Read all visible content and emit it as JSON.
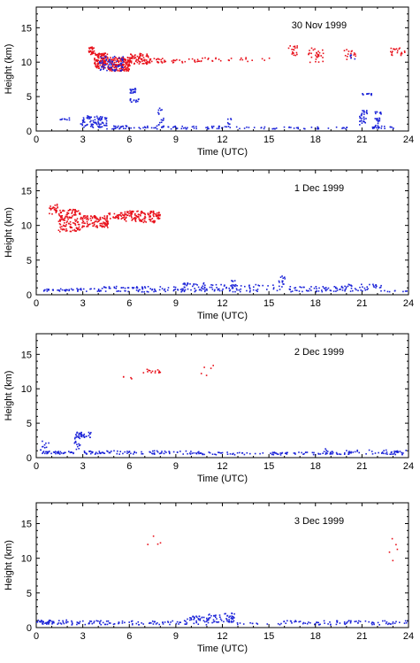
{
  "chart_data": [
    {
      "type": "scatter",
      "title": "30 Nov 1999",
      "xlabel": "Time (UTC)",
      "ylabel": "Height (km)",
      "xlim": [
        0,
        24
      ],
      "ylim": [
        0,
        18
      ],
      "xticks": [
        0,
        3,
        6,
        9,
        12,
        15,
        18,
        21,
        24
      ],
      "yticks": [
        0,
        5,
        10,
        15
      ],
      "series": [
        {
          "color": "#e8101a",
          "segments": [
            {
              "x0": 3.3,
              "x1": 3.7,
              "y0": 11.2,
              "y1": 12.3,
              "n": 30
            },
            {
              "x0": 3.7,
              "x1": 4.6,
              "y0": 9.2,
              "y1": 11.4,
              "n": 120
            },
            {
              "x0": 4.6,
              "x1": 6.0,
              "y0": 8.8,
              "y1": 10.8,
              "n": 160
            },
            {
              "x0": 6.0,
              "x1": 7.2,
              "y0": 9.8,
              "y1": 11.4,
              "n": 70
            },
            {
              "x0": 7.2,
              "x1": 8.4,
              "y0": 10.0,
              "y1": 10.7,
              "n": 25
            },
            {
              "x0": 8.4,
              "x1": 10.5,
              "y0": 10.0,
              "y1": 10.6,
              "n": 20
            },
            {
              "x0": 10.5,
              "x1": 15.0,
              "y0": 10.2,
              "y1": 10.8,
              "n": 25
            },
            {
              "x0": 16.2,
              "x1": 16.8,
              "y0": 11.0,
              "y1": 12.5,
              "n": 18
            },
            {
              "x0": 17.5,
              "x1": 18.5,
              "y0": 10.0,
              "y1": 12.2,
              "n": 30
            },
            {
              "x0": 19.8,
              "x1": 20.6,
              "y0": 10.5,
              "y1": 12.0,
              "n": 15
            },
            {
              "x0": 22.8,
              "x1": 23.8,
              "y0": 11.0,
              "y1": 12.2,
              "n": 20
            }
          ]
        },
        {
          "color": "#1a22d8",
          "segments": [
            {
              "x0": 4.0,
              "x1": 5.6,
              "y0": 8.8,
              "y1": 11.0,
              "n": 70
            },
            {
              "x0": 6.0,
              "x1": 6.4,
              "y0": 5.6,
              "y1": 6.3,
              "n": 18
            },
            {
              "x0": 6.0,
              "x1": 6.6,
              "y0": 4.3,
              "y1": 4.8,
              "n": 14
            },
            {
              "x0": 1.5,
              "x1": 2.2,
              "y0": 1.7,
              "y1": 2.0,
              "n": 8
            },
            {
              "x0": 2.8,
              "x1": 4.5,
              "y0": 0.6,
              "y1": 2.3,
              "n": 90
            },
            {
              "x0": 4.5,
              "x1": 7.8,
              "y0": 0.4,
              "y1": 0.9,
              "n": 40
            },
            {
              "x0": 7.8,
              "x1": 8.2,
              "y0": 0.6,
              "y1": 3.5,
              "n": 20
            },
            {
              "x0": 8.2,
              "x1": 12.5,
              "y0": 0.4,
              "y1": 0.8,
              "n": 40
            },
            {
              "x0": 12.3,
              "x1": 12.6,
              "y0": 0.6,
              "y1": 2.0,
              "n": 8
            },
            {
              "x0": 12.5,
              "x1": 20.2,
              "y0": 0.4,
              "y1": 0.7,
              "n": 40
            },
            {
              "x0": 20.8,
              "x1": 21.3,
              "y0": 0.8,
              "y1": 3.2,
              "n": 30
            },
            {
              "x0": 20.9,
              "x1": 21.7,
              "y0": 5.3,
              "y1": 5.6,
              "n": 12
            },
            {
              "x0": 21.8,
              "x1": 22.2,
              "y0": 0.6,
              "y1": 3.2,
              "n": 25
            },
            {
              "x0": 21.6,
              "x1": 23.0,
              "y0": 0.4,
              "y1": 0.8,
              "n": 20
            },
            {
              "x0": 20.2,
              "x1": 20.5,
              "y0": 10.5,
              "y1": 11.2,
              "n": 6
            }
          ]
        }
      ]
    },
    {
      "type": "scatter",
      "title": "1 Dec 1999",
      "xlabel": "Time (UTC)",
      "ylabel": "Height (km)",
      "xlim": [
        0,
        24
      ],
      "ylim": [
        0,
        18
      ],
      "xticks": [
        0,
        3,
        6,
        9,
        12,
        15,
        18,
        21,
        24
      ],
      "yticks": [
        0,
        5,
        10,
        15
      ],
      "series": [
        {
          "color": "#e8101a",
          "segments": [
            {
              "x0": 0.8,
              "x1": 1.4,
              "y0": 11.6,
              "y1": 13.2,
              "n": 25
            },
            {
              "x0": 1.4,
              "x1": 2.8,
              "y0": 9.2,
              "y1": 12.4,
              "n": 130
            },
            {
              "x0": 2.8,
              "x1": 4.6,
              "y0": 9.8,
              "y1": 11.5,
              "n": 110
            },
            {
              "x0": 4.6,
              "x1": 5.6,
              "y0": 11.0,
              "y1": 12.0,
              "n": 30
            },
            {
              "x0": 5.6,
              "x1": 7.6,
              "y0": 10.5,
              "y1": 12.2,
              "n": 120
            },
            {
              "x0": 7.6,
              "x1": 8.0,
              "y0": 11.0,
              "y1": 12.0,
              "n": 20
            }
          ]
        },
        {
          "color": "#1a22d8",
          "segments": [
            {
              "x0": 0.4,
              "x1": 4.2,
              "y0": 0.6,
              "y1": 1.0,
              "n": 45
            },
            {
              "x0": 4.2,
              "x1": 9.2,
              "y0": 0.5,
              "y1": 1.3,
              "n": 70
            },
            {
              "x0": 9.2,
              "x1": 11.0,
              "y0": 0.5,
              "y1": 1.8,
              "n": 50
            },
            {
              "x0": 11.0,
              "x1": 15.5,
              "y0": 0.5,
              "y1": 1.6,
              "n": 60
            },
            {
              "x0": 12.5,
              "x1": 12.9,
              "y0": 1.0,
              "y1": 2.2,
              "n": 10
            },
            {
              "x0": 15.6,
              "x1": 16.0,
              "y0": 0.6,
              "y1": 2.8,
              "n": 15
            },
            {
              "x0": 16.0,
              "x1": 19.5,
              "y0": 0.5,
              "y1": 1.3,
              "n": 50
            },
            {
              "x0": 19.5,
              "x1": 22.2,
              "y0": 0.6,
              "y1": 1.6,
              "n": 45
            },
            {
              "x0": 22.2,
              "x1": 23.9,
              "y0": 0.5,
              "y1": 0.7,
              "n": 8
            }
          ]
        }
      ]
    },
    {
      "type": "scatter",
      "title": "2 Dec 1999",
      "xlabel": "Time (UTC)",
      "ylabel": "Height (km)",
      "xlim": [
        0,
        24
      ],
      "ylim": [
        0,
        18
      ],
      "xticks": [
        0,
        3,
        6,
        9,
        12,
        15,
        18,
        21,
        24
      ],
      "yticks": [
        0,
        5,
        10,
        15
      ],
      "series": [
        {
          "color": "#e8101a",
          "segments": [
            {
              "x0": 6.8,
              "x1": 8.0,
              "y0": 12.4,
              "y1": 13.0,
              "n": 14
            },
            {
              "x0": 5.5,
              "x1": 6.2,
              "y0": 11.4,
              "y1": 11.9,
              "n": 4
            },
            {
              "x0": 10.0,
              "x1": 11.5,
              "y0": 12.0,
              "y1": 13.5,
              "n": 5
            }
          ]
        },
        {
          "color": "#1a22d8",
          "segments": [
            {
              "x0": 0.2,
              "x1": 0.8,
              "y0": 0.6,
              "y1": 2.6,
              "n": 15
            },
            {
              "x0": 0.3,
              "x1": 2.4,
              "y0": 0.6,
              "y1": 1.0,
              "n": 30
            },
            {
              "x0": 2.4,
              "x1": 2.8,
              "y0": 1.0,
              "y1": 3.2,
              "n": 15
            },
            {
              "x0": 2.5,
              "x1": 3.5,
              "y0": 3.0,
              "y1": 3.8,
              "n": 35
            },
            {
              "x0": 3.0,
              "x1": 10.5,
              "y0": 0.6,
              "y1": 1.1,
              "n": 90
            },
            {
              "x0": 10.5,
              "x1": 18.5,
              "y0": 0.5,
              "y1": 0.9,
              "n": 70
            },
            {
              "x0": 18.5,
              "x1": 19.0,
              "y0": 0.6,
              "y1": 1.4,
              "n": 12
            },
            {
              "x0": 19.0,
              "x1": 23.8,
              "y0": 0.5,
              "y1": 1.2,
              "n": 60
            }
          ]
        }
      ]
    },
    {
      "type": "scatter",
      "title": "3 Dec 1999",
      "xlabel": "Time (UTC)",
      "ylabel": "Height (km)",
      "xlim": [
        0,
        24
      ],
      "ylim": [
        0,
        18
      ],
      "xticks": [
        0,
        3,
        6,
        9,
        12,
        15,
        18,
        21,
        24
      ],
      "yticks": [
        0,
        5,
        10,
        15
      ],
      "series": [
        {
          "color": "#e8101a",
          "segments": [
            {
              "x0": 6.5,
              "x1": 8.0,
              "y0": 12.0,
              "y1": 14.0,
              "n": 4
            },
            {
              "x0": 22.5,
              "x1": 23.5,
              "y0": 9.5,
              "y1": 13.0,
              "n": 5
            }
          ]
        },
        {
          "color": "#1a22d8",
          "segments": [
            {
              "x0": 0.0,
              "x1": 2.0,
              "y0": 0.6,
              "y1": 1.2,
              "n": 45
            },
            {
              "x0": 2.0,
              "x1": 9.5,
              "y0": 0.5,
              "y1": 1.1,
              "n": 80
            },
            {
              "x0": 9.5,
              "x1": 11.0,
              "y0": 0.5,
              "y1": 1.8,
              "n": 40
            },
            {
              "x0": 11.0,
              "x1": 12.8,
              "y0": 0.8,
              "y1": 2.2,
              "n": 55
            },
            {
              "x0": 12.8,
              "x1": 15.0,
              "y0": 0.5,
              "y1": 0.8,
              "n": 10
            },
            {
              "x0": 15.5,
              "x1": 24.0,
              "y0": 0.5,
              "y1": 1.1,
              "n": 85
            }
          ]
        }
      ]
    }
  ]
}
